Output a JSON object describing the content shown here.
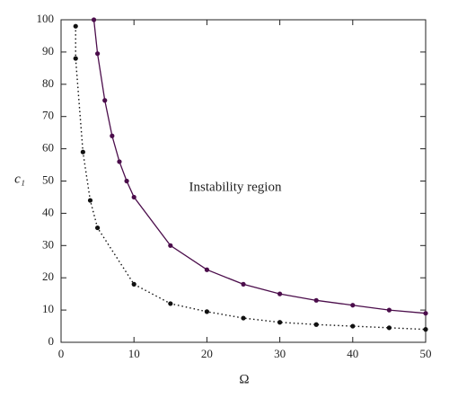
{
  "chart_data": {
    "type": "line",
    "xlabel": "Ω",
    "ylabel": "c₁",
    "annotation": "Instability region",
    "xlim": [
      0,
      50
    ],
    "xticks": [
      0,
      10,
      20,
      30,
      40,
      50
    ],
    "ylim": [
      0,
      100
    ],
    "yticks": [
      0,
      10,
      20,
      30,
      40,
      50,
      60,
      70,
      80,
      90,
      100
    ],
    "grid": false,
    "series": [
      {
        "color": "#4b0d4b",
        "linestyle": "solid",
        "x": [
          4.5,
          5,
          6,
          7,
          8,
          9,
          10,
          15,
          20,
          25,
          30,
          35,
          40,
          45,
          50
        ],
        "values": [
          100,
          89.5,
          75,
          64,
          56,
          50,
          45,
          30,
          22.5,
          18,
          15,
          13,
          11.5,
          10,
          9
        ]
      },
      {
        "color": "#111111",
        "linestyle": "dotted",
        "x": [
          2,
          2,
          3,
          4,
          5,
          10,
          15,
          20,
          25,
          30,
          35,
          40,
          45,
          50
        ],
        "values": [
          98,
          88,
          59,
          44,
          35.5,
          18,
          12,
          9.5,
          7.5,
          6.2,
          5.5,
          5,
          4.5,
          4
        ]
      }
    ]
  }
}
